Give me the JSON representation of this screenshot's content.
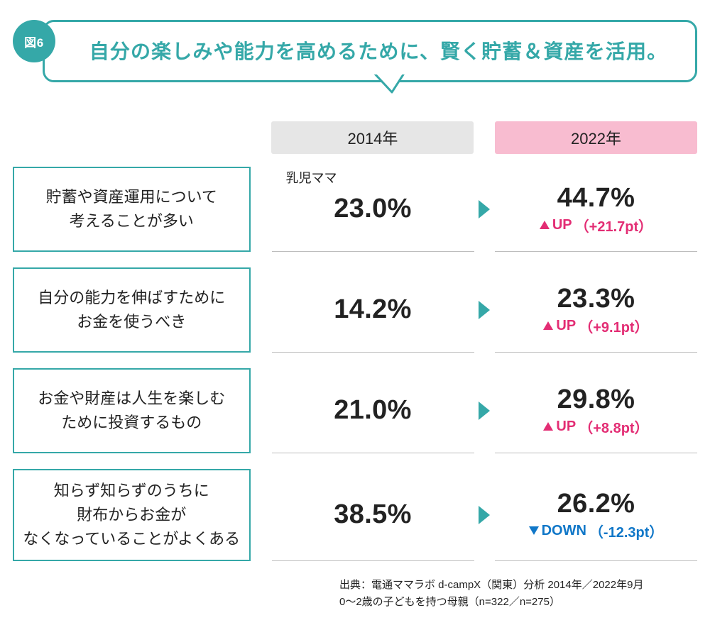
{
  "figure_label": "図6",
  "headline": "自分の楽しみや能力を高めるために、賢く貯蓄＆資産を活用。",
  "theme": {
    "accent_teal": "#35a8a8",
    "header_2014_bg": "#e6e6e6",
    "header_2022_bg": "#f8bcd0",
    "up_color": "#e32d74",
    "down_color": "#1077c8",
    "divider_color": "#bdbdbd",
    "background": "#ffffff"
  },
  "columns": {
    "year_2014": "2014年",
    "year_2022": "2022年"
  },
  "segment_label": "乳児ママ",
  "rows": [
    {
      "label_lines": [
        "貯蓄や資産運用について",
        "考えることが多い"
      ],
      "val_2014": "23.0%",
      "val_2022": "44.7%",
      "direction": "up",
      "delta_word": "UP",
      "delta_value": "（+21.7pt）",
      "show_segment_label": true
    },
    {
      "label_lines": [
        "自分の能力を伸ばすために",
        "お金を使うべき"
      ],
      "val_2014": "14.2%",
      "val_2022": "23.3%",
      "direction": "up",
      "delta_word": "UP",
      "delta_value": "（+9.1pt）",
      "show_segment_label": false
    },
    {
      "label_lines": [
        "お金や財産は人生を楽しむ",
        "ために投資するもの"
      ],
      "val_2014": "21.0%",
      "val_2022": "29.8%",
      "direction": "up",
      "delta_word": "UP",
      "delta_value": "（+8.8pt）",
      "show_segment_label": false
    },
    {
      "label_lines": [
        "知らず知らずのうちに",
        "財布からお金が",
        "なくなっていることがよくある"
      ],
      "val_2014": "38.5%",
      "val_2022": "26.2%",
      "direction": "down",
      "delta_word": "DOWN",
      "delta_value": "（-12.3pt）",
      "show_segment_label": false
    }
  ],
  "source_lines": [
    "出典：電通ママラボ d-campX（関東）分析 2014年／2022年9月",
    "0〜2歳の子どもを持つ母親（n=322／n=275）"
  ]
}
